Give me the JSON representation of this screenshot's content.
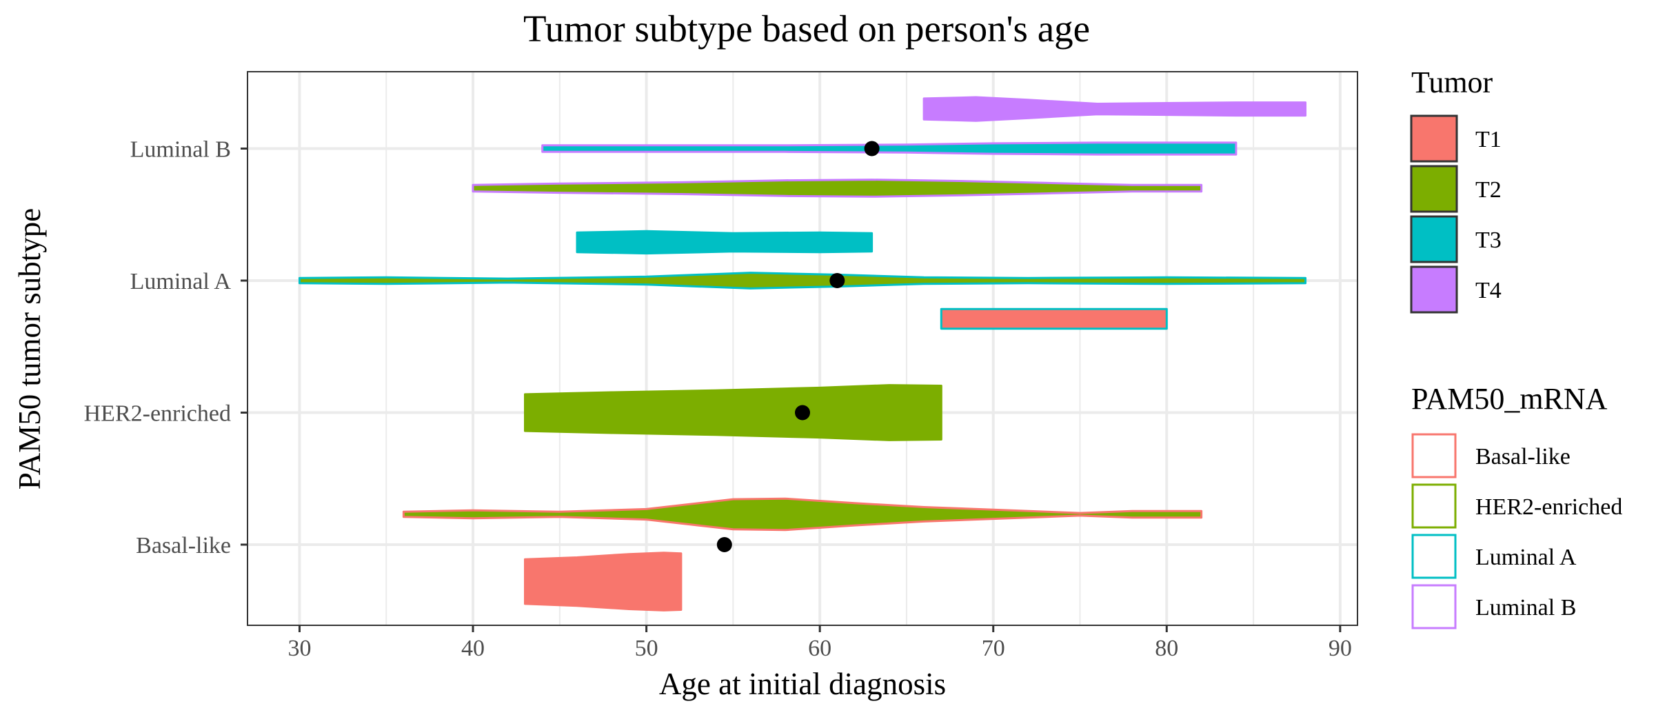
{
  "chart_data": {
    "type": "violin",
    "title": "Tumor subtype based on person's age",
    "xlabel": "Age at initial diagnosis",
    "ylabel": "PAM50 tumor subtype",
    "xlim": [
      27,
      91
    ],
    "x_ticks": [
      30,
      40,
      50,
      60,
      70,
      80,
      90
    ],
    "categories": [
      "Basal-like",
      "HER2-enriched",
      "Luminal A",
      "Luminal B"
    ],
    "grid": true,
    "legend_position": "right",
    "fill_legend": {
      "title": "Tumor",
      "items": [
        {
          "label": "T1",
          "color": "#F8766D"
        },
        {
          "label": "T2",
          "color": "#7CAE00"
        },
        {
          "label": "T3",
          "color": "#00BFC4"
        },
        {
          "label": "T4",
          "color": "#C77CFF"
        }
      ]
    },
    "outline_legend": {
      "title": "PAM50_mRNA",
      "items": [
        {
          "label": "Basal-like",
          "color": "#F8766D"
        },
        {
          "label": "HER2-enriched",
          "color": "#7CAE00"
        },
        {
          "label": "Luminal A",
          "color": "#00BFC4"
        },
        {
          "label": "Luminal B",
          "color": "#C77CFF"
        }
      ]
    },
    "violins": [
      {
        "subtype": "Basal-like",
        "tumor": "T1",
        "fill": "#F8766D",
        "outline": "#F8766D",
        "offset": -0.28,
        "profile": [
          [
            43,
            0.34
          ],
          [
            46,
            0.37
          ],
          [
            49,
            0.42
          ],
          [
            51,
            0.44
          ],
          [
            52,
            0.43
          ]
        ]
      },
      {
        "subtype": "Basal-like",
        "tumor": "T2",
        "fill": "#7CAE00",
        "outline": "#F8766D",
        "offset": 0.23,
        "profile": [
          [
            36,
            0.04
          ],
          [
            40,
            0.06
          ],
          [
            45,
            0.04
          ],
          [
            50,
            0.08
          ],
          [
            55,
            0.23
          ],
          [
            58,
            0.24
          ],
          [
            62,
            0.17
          ],
          [
            66,
            0.11
          ],
          [
            70,
            0.07
          ],
          [
            75,
            0.02
          ],
          [
            78,
            0.05
          ],
          [
            82,
            0.05
          ]
        ]
      },
      {
        "subtype": "HER2-enriched",
        "tumor": "T2",
        "fill": "#7CAE00",
        "outline": "#7CAE00",
        "offset": 0.0,
        "profile": [
          [
            43,
            0.28
          ],
          [
            48,
            0.31
          ],
          [
            54,
            0.34
          ],
          [
            60,
            0.38
          ],
          [
            64,
            0.42
          ],
          [
            67,
            0.41
          ]
        ]
      },
      {
        "subtype": "Luminal A",
        "tumor": "T1",
        "fill": "#F8766D",
        "outline": "#00BFC4",
        "offset": -0.29,
        "profile": [
          [
            67,
            0.15
          ],
          [
            72,
            0.15
          ],
          [
            76,
            0.15
          ],
          [
            80,
            0.15
          ]
        ]
      },
      {
        "subtype": "Luminal A",
        "tumor": "T2",
        "fill": "#7CAE00",
        "outline": "#00BFC4",
        "offset": 0.0,
        "profile": [
          [
            30,
            0.04
          ],
          [
            35,
            0.05
          ],
          [
            42,
            0.03
          ],
          [
            50,
            0.06
          ],
          [
            56,
            0.12
          ],
          [
            61,
            0.09
          ],
          [
            66,
            0.05
          ],
          [
            72,
            0.04
          ],
          [
            80,
            0.05
          ],
          [
            88,
            0.04
          ]
        ]
      },
      {
        "subtype": "Luminal A",
        "tumor": "T3",
        "fill": "#00BFC4",
        "outline": "#00BFC4",
        "offset": 0.29,
        "profile": [
          [
            46,
            0.15
          ],
          [
            50,
            0.17
          ],
          [
            55,
            0.14
          ],
          [
            60,
            0.15
          ],
          [
            63,
            0.14
          ]
        ]
      },
      {
        "subtype": "Luminal B",
        "tumor": "T2",
        "fill": "#7CAE00",
        "outline": "#C77CFF",
        "offset": -0.3,
        "profile": [
          [
            40,
            0.05
          ],
          [
            45,
            0.07
          ],
          [
            52,
            0.09
          ],
          [
            58,
            0.12
          ],
          [
            63,
            0.13
          ],
          [
            68,
            0.11
          ],
          [
            73,
            0.08
          ],
          [
            78,
            0.05
          ],
          [
            82,
            0.05
          ]
        ]
      },
      {
        "subtype": "Luminal B",
        "tumor": "T3",
        "fill": "#00BFC4",
        "outline": "#C77CFF",
        "offset": 0.0,
        "profile": [
          [
            44,
            0.05
          ],
          [
            50,
            0.05
          ],
          [
            58,
            0.05
          ],
          [
            65,
            0.06
          ],
          [
            70,
            0.08
          ],
          [
            76,
            0.09
          ],
          [
            80,
            0.09
          ],
          [
            84,
            0.09
          ]
        ]
      },
      {
        "subtype": "Luminal B",
        "tumor": "T4",
        "fill": "#C77CFF",
        "outline": "#C77CFF",
        "offset": 0.3,
        "profile": [
          [
            66,
            0.16
          ],
          [
            69,
            0.18
          ],
          [
            72,
            0.14
          ],
          [
            76,
            0.08
          ],
          [
            80,
            0.09
          ],
          [
            84,
            0.1
          ],
          [
            88,
            0.1
          ]
        ]
      }
    ],
    "points": [
      {
        "subtype": "Basal-like",
        "x": 54.5,
        "offset": 0.0
      },
      {
        "subtype": "HER2-enriched",
        "x": 59,
        "offset": 0.0
      },
      {
        "subtype": "Luminal A",
        "x": 61,
        "offset": 0.0
      },
      {
        "subtype": "Luminal B",
        "x": 63,
        "offset": 0.0
      }
    ]
  }
}
